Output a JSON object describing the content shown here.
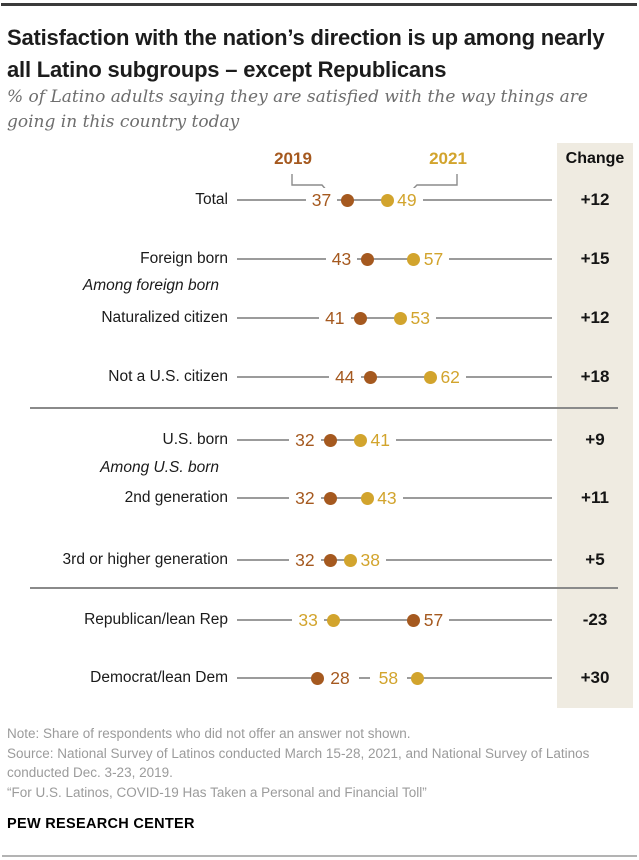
{
  "header": {
    "title": "Satisfaction with the nation’s direction is up among nearly all Latino subgroups – except Republicans",
    "subtitle": "% of Latino adults saying they are satisfied with the way things are going in this country today"
  },
  "legend": {
    "label_2019": "2019",
    "label_2021": "2021"
  },
  "change_column": {
    "header": "Change"
  },
  "chart_data": {
    "type": "dumbbell-dot-plot",
    "series": [
      "2019",
      "2021"
    ],
    "colors": {
      "c2019": "#A5591F",
      "c2021": "#D2A42D",
      "line": "#9B9B9B",
      "panel": "#EFEBE1"
    },
    "items": [
      {
        "kind": "row",
        "label": "Total",
        "v2019": 37,
        "v2021": 49,
        "change": "+12"
      },
      {
        "kind": "row",
        "label": "Foreign born",
        "v2019": 43,
        "v2021": 57,
        "change": "+15"
      },
      {
        "kind": "group",
        "label": "Among foreign born"
      },
      {
        "kind": "row",
        "label": "Naturalized citizen",
        "v2019": 41,
        "v2021": 53,
        "change": "+12"
      },
      {
        "kind": "row",
        "label": "Not a U.S. citizen",
        "v2019": 44,
        "v2021": 62,
        "change": "+18"
      },
      {
        "kind": "divider"
      },
      {
        "kind": "row",
        "label": "U.S. born",
        "v2019": 32,
        "v2021": 41,
        "change": "+9"
      },
      {
        "kind": "group",
        "label": "Among U.S. born"
      },
      {
        "kind": "row",
        "label": "2nd generation",
        "v2019": 32,
        "v2021": 43,
        "change": "+11"
      },
      {
        "kind": "row",
        "label": "3rd or higher generation",
        "v2019": 32,
        "v2021": 38,
        "change": "+5"
      },
      {
        "kind": "divider"
      },
      {
        "kind": "row",
        "label": "Republican/lean Rep",
        "v2019": 57,
        "v2021": 33,
        "change": "-23"
      },
      {
        "kind": "row",
        "label": "Democrat/lean Dem",
        "v2019": 28,
        "v2021": 58,
        "change": "+30"
      }
    ]
  },
  "footer": {
    "note": "Note: Share of respondents who did not offer an answer not shown.",
    "source": "Source: National Survey of Latinos conducted March 15-28, 2021, and National Survey of Latinos conducted Dec. 3-23, 2019.",
    "quote": "“For U.S. Latinos, COVID-19 Has Taken a Personal and Financial Toll”",
    "brand": "PEW RESEARCH CENTER"
  }
}
